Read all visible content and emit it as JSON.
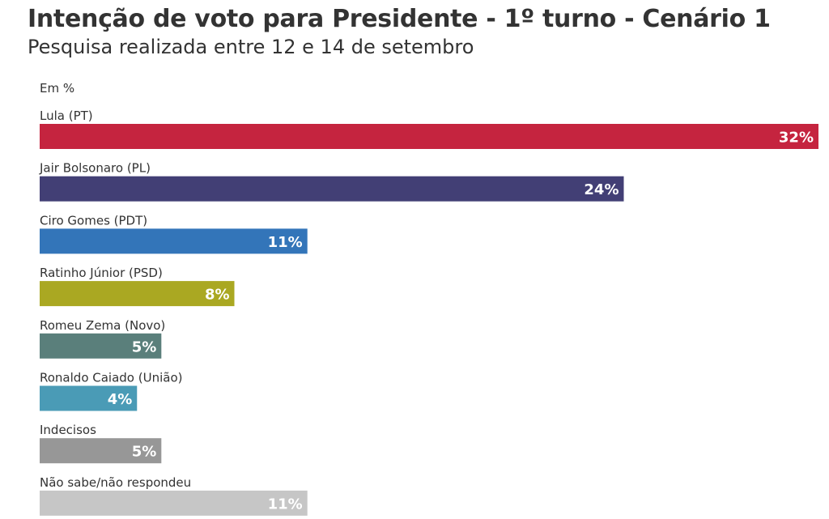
{
  "chart_data": {
    "type": "bar",
    "orientation": "horizontal",
    "title": "Intenção de voto para Presidente - 1º turno - Cenário 1",
    "subtitle": "Pesquisa realizada entre 12 e 14 de setembro",
    "unit_label": "Em %",
    "categories": [
      "Lula (PT)",
      "Jair Bolsonaro (PL)",
      "Ciro Gomes (PDT)",
      "Ratinho Júnior (PSD)",
      "Romeu Zema (Novo)",
      "Ronaldo Caiado (União)",
      "Indecisos",
      "Não sabe/não respondeu"
    ],
    "values": [
      32,
      24,
      11,
      8,
      5,
      4,
      5,
      11
    ],
    "value_labels": [
      "32%",
      "24%",
      "11%",
      "8%",
      "5%",
      "4%",
      "5%",
      "11%"
    ],
    "colors": [
      "#c5243f",
      "#423f75",
      "#3375b9",
      "#aaa822",
      "#5a7f7b",
      "#4a9bb6",
      "#979797",
      "#c6c6c6"
    ],
    "xlim": [
      0,
      32
    ],
    "grid": false,
    "legend": "none"
  }
}
